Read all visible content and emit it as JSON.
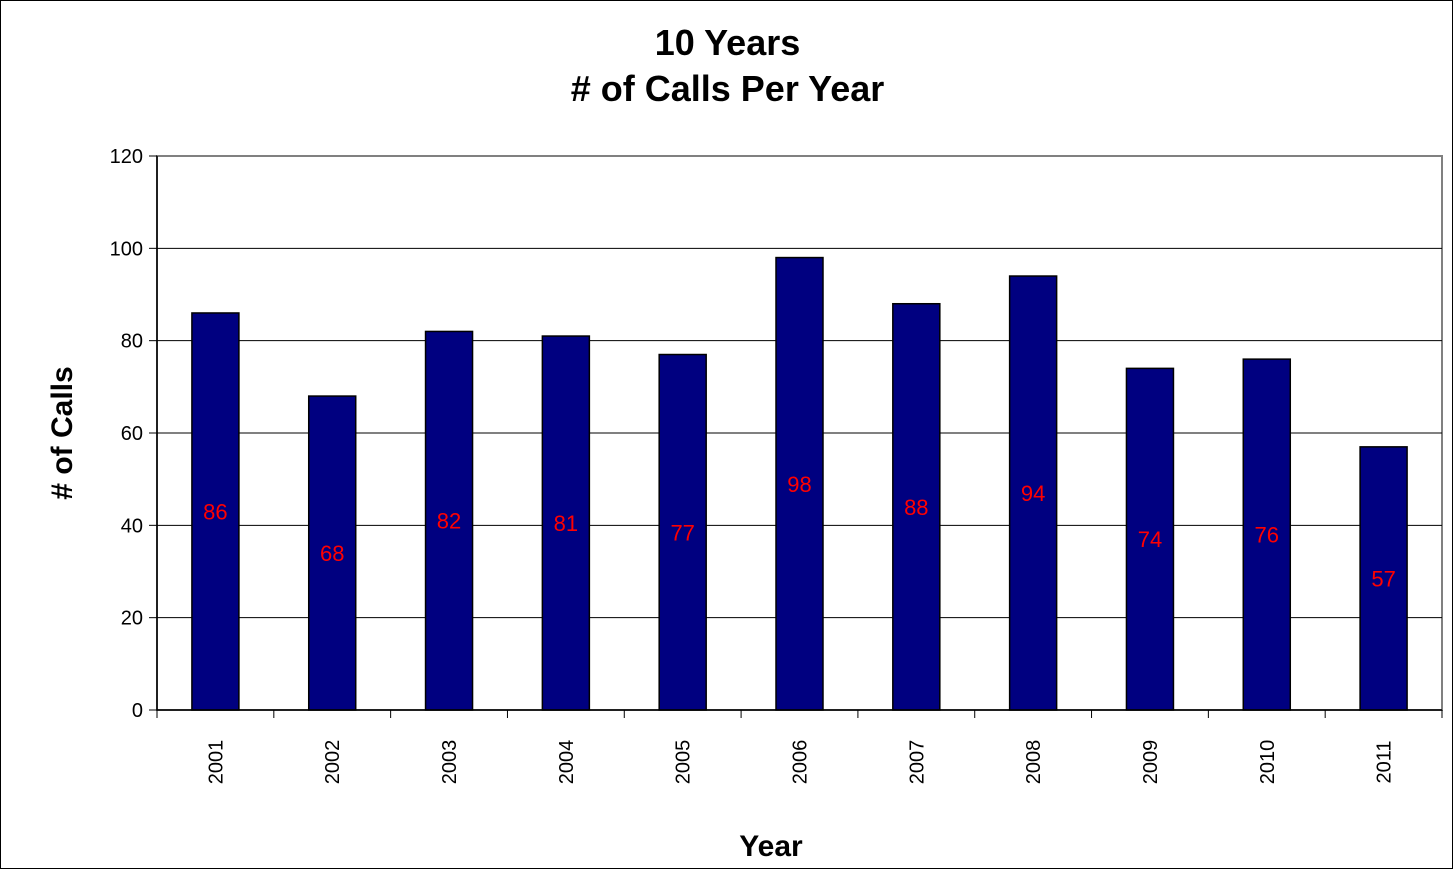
{
  "chart_data": {
    "type": "bar",
    "title": [
      "10 Years",
      "# of Calls Per Year"
    ],
    "xlabel": "Year",
    "ylabel": "# of Calls",
    "categories": [
      "2001",
      "2002",
      "2003",
      "2004",
      "2005",
      "2006",
      "2007",
      "2008",
      "2009",
      "2010",
      "2011"
    ],
    "values": [
      86,
      68,
      82,
      81,
      77,
      98,
      88,
      94,
      74,
      76,
      57
    ],
    "ylim": [
      0,
      120
    ],
    "yticks": [
      0,
      20,
      40,
      60,
      80,
      100,
      120
    ],
    "grid": true,
    "legend": "none",
    "colors": {
      "bar": "#000080",
      "bar_label": "#ff0000",
      "grid": "#000000",
      "plot_border": "#808080"
    }
  }
}
